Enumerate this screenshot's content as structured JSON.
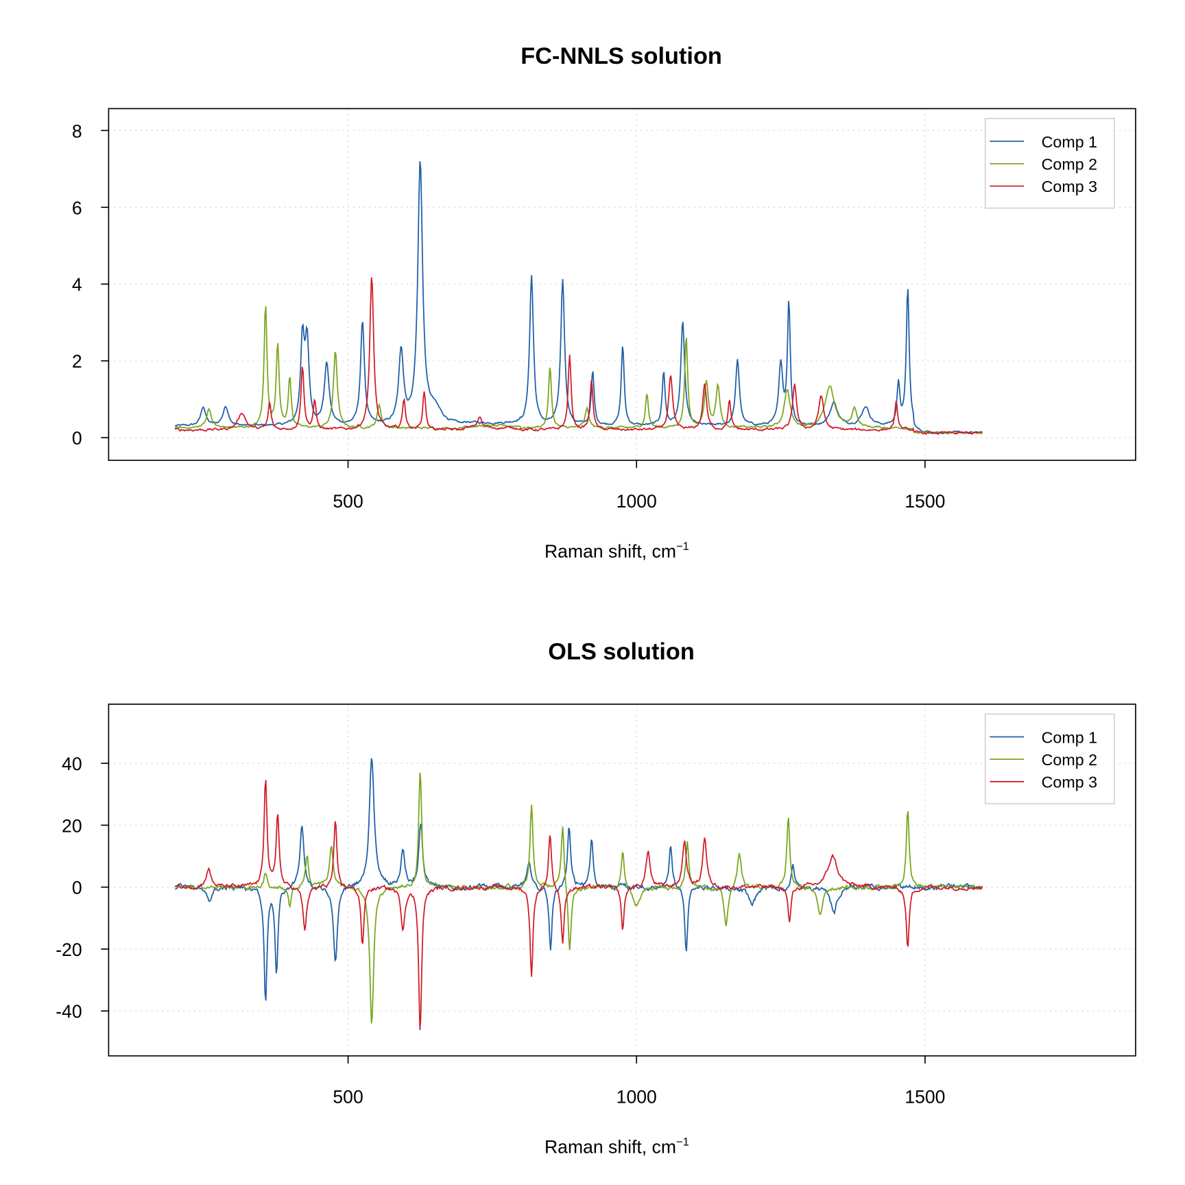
{
  "chart_data": [
    {
      "type": "line",
      "title": "FC-NNLS solution",
      "xlabel": "Raman shift, cm",
      "xlabel_sup": "−1",
      "ylabel": "",
      "xlim": [
        85,
        1865
      ],
      "ylim": [
        -0.59,
        8.57
      ],
      "x_range": [
        200,
        1600
      ],
      "xticks": [
        500,
        1000,
        1500
      ],
      "xtick_labels": [
        "500",
        "1000",
        "1500"
      ],
      "yticks": [
        0,
        2,
        4,
        6,
        8
      ],
      "ytick_labels": [
        "0",
        "2",
        "4",
        "6",
        "8"
      ],
      "grid": true,
      "legend": {
        "position": "top-right",
        "entries": [
          "Comp 1",
          "Comp 2",
          "Comp 3"
        ]
      },
      "series": [
        {
          "name": "Comp 1",
          "color": "#1f5fa6",
          "baseline": 0.3,
          "noise": 0.04,
          "peaks": [
            [
              249,
              0.5,
              5
            ],
            [
              288,
              0.5,
              6
            ],
            [
              421,
              2.2,
              4
            ],
            [
              429,
              2.1,
              4
            ],
            [
              463,
              1.6,
              5
            ],
            [
              525,
              2.7,
              4
            ],
            [
              592,
              1.9,
              5
            ],
            [
              625,
              6.8,
              5
            ],
            [
              650,
              0.4,
              15
            ],
            [
              818,
              3.9,
              4
            ],
            [
              872,
              3.8,
              4
            ],
            [
              924,
              1.4,
              3
            ],
            [
              976,
              2.1,
              3
            ],
            [
              1047,
              1.4,
              3
            ],
            [
              1080,
              2.7,
              4
            ],
            [
              1175,
              1.7,
              4
            ],
            [
              1250,
              1.6,
              4
            ],
            [
              1264,
              3.2,
              3
            ],
            [
              1342,
              0.6,
              8
            ],
            [
              1397,
              0.5,
              8
            ],
            [
              1454,
              1.1,
              3
            ],
            [
              1470,
              3.6,
              3
            ]
          ]
        },
        {
          "name": "Comp 2",
          "color": "#7ba51f",
          "baseline": 0.25,
          "noise": 0.04,
          "peaks": [
            [
              259,
              0.5,
              5
            ],
            [
              357,
              3.2,
              3
            ],
            [
              378,
              2.2,
              3
            ],
            [
              399,
              1.3,
              3
            ],
            [
              478,
              2.0,
              4
            ],
            [
              554,
              0.6,
              4
            ],
            [
              850,
              1.6,
              3
            ],
            [
              914,
              0.5,
              4
            ],
            [
              1018,
              0.9,
              3
            ],
            [
              1086,
              2.4,
              3
            ],
            [
              1121,
              1.2,
              4
            ],
            [
              1141,
              1.1,
              4
            ],
            [
              1261,
              1.0,
              6
            ],
            [
              1335,
              1.05,
              10
            ],
            [
              1378,
              0.5,
              5
            ]
          ]
        },
        {
          "name": "Comp 3",
          "color": "#d01c29",
          "baseline": 0.2,
          "noise": 0.05,
          "peaks": [
            [
              316,
              0.45,
              8
            ],
            [
              364,
              0.7,
              3
            ],
            [
              421,
              1.7,
              3
            ],
            [
              442,
              0.75,
              3
            ],
            [
              541,
              4.0,
              4
            ],
            [
              597,
              0.8,
              3
            ],
            [
              632,
              1.0,
              3
            ],
            [
              728,
              0.3,
              4
            ],
            [
              884,
              1.95,
              3
            ],
            [
              922,
              1.3,
              3
            ],
            [
              1059,
              1.4,
              4
            ],
            [
              1118,
              1.2,
              4
            ],
            [
              1161,
              0.75,
              3
            ],
            [
              1274,
              1.2,
              4
            ],
            [
              1320,
              0.9,
              5
            ],
            [
              1450,
              0.7,
              3
            ]
          ]
        }
      ]
    },
    {
      "type": "line",
      "title": "OLS solution",
      "xlabel": "Raman shift, cm",
      "xlabel_sup": "−1",
      "ylabel": "",
      "xlim": [
        85,
        1865
      ],
      "ylim": [
        -54.5,
        59.1
      ],
      "x_range": [
        200,
        1600
      ],
      "xticks": [
        500,
        1000,
        1500
      ],
      "xtick_labels": [
        "500",
        "1000",
        "1500"
      ],
      "yticks": [
        -40,
        -20,
        0,
        20,
        40
      ],
      "ytick_labels": [
        "-40",
        "-20",
        "0",
        "20",
        "40"
      ],
      "grid": true,
      "legend": {
        "position": "top-right",
        "entries": [
          "Comp 1",
          "Comp 2",
          "Comp 3"
        ]
      },
      "series": [
        {
          "name": "Comp 1",
          "color": "#1f5fa6",
          "baseline": 0,
          "noise": 1.2,
          "peaks": [
            [
              260,
              -5,
              5
            ],
            [
              357,
              -37,
              3
            ],
            [
              376,
              -27,
              3
            ],
            [
              420,
              21,
              4
            ],
            [
              478,
              -25,
              4
            ],
            [
              541,
              42,
              5
            ],
            [
              595,
              12,
              4
            ],
            [
              626,
              20,
              4
            ],
            [
              814,
              9,
              4
            ],
            [
              851,
              -21,
              3
            ],
            [
              883,
              19,
              3
            ],
            [
              922,
              16,
              3
            ],
            [
              1059,
              14,
              3
            ],
            [
              1086,
              -21,
              3
            ],
            [
              1200,
              -6,
              8
            ],
            [
              1271,
              8,
              3
            ],
            [
              1342,
              -9,
              6
            ]
          ]
        },
        {
          "name": "Comp 2",
          "color": "#7ba51f",
          "baseline": 0,
          "noise": 1.0,
          "peaks": [
            [
              357,
              5,
              3
            ],
            [
              399,
              -7,
              3
            ],
            [
              429,
              11,
              3
            ],
            [
              471,
              13,
              4
            ],
            [
              541,
              -45,
              4
            ],
            [
              625,
              39,
              3
            ],
            [
              818,
              26,
              3
            ],
            [
              872,
              21,
              3
            ],
            [
              884,
              -22,
              3
            ],
            [
              976,
              13,
              3
            ],
            [
              1000,
              -6,
              8
            ],
            [
              1088,
              15,
              3
            ],
            [
              1155,
              -13,
              4
            ],
            [
              1178,
              11,
              4
            ],
            [
              1263,
              23,
              3
            ],
            [
              1318,
              -9,
              5
            ],
            [
              1470,
              26,
              3
            ]
          ]
        },
        {
          "name": "Comp 3",
          "color": "#d01c29",
          "baseline": 0,
          "noise": 1.0,
          "peaks": [
            [
              258,
              6,
              5
            ],
            [
              357,
              36,
              3
            ],
            [
              378,
              24,
              3
            ],
            [
              425,
              -14,
              4
            ],
            [
              478,
              21,
              3
            ],
            [
              525,
              -19,
              3
            ],
            [
              595,
              -13,
              4
            ],
            [
              625,
              -47,
              3
            ],
            [
              818,
              -29,
              3
            ],
            [
              850,
              18,
              3
            ],
            [
              872,
              -19,
              3
            ],
            [
              976,
              -14,
              3
            ],
            [
              1020,
              12,
              4
            ],
            [
              1083,
              15,
              4
            ],
            [
              1118,
              16,
              4
            ],
            [
              1265,
              -12,
              3
            ],
            [
              1340,
              10,
              10
            ],
            [
              1470,
              -20,
              3
            ]
          ]
        }
      ]
    }
  ]
}
